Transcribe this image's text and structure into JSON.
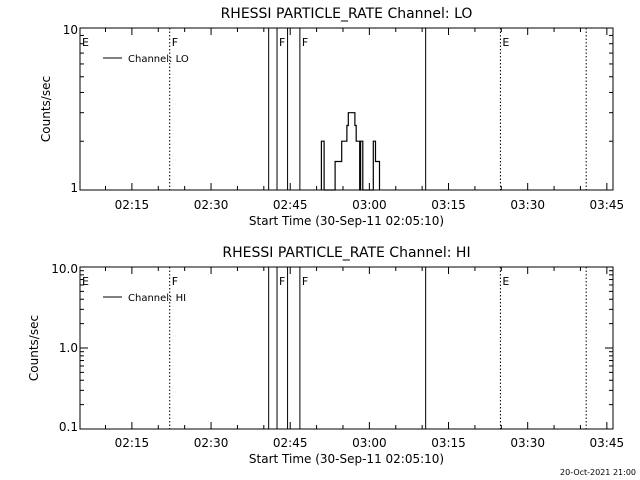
{
  "footer_timestamp": "20-Oct-2021 21:00",
  "chart_data": [
    {
      "type": "line",
      "title": "RHESSI PARTICLE_RATE Channel: LO",
      "xlabel": "Start Time (30-Sep-11 02:05:10)",
      "ylabel": "Counts/sec",
      "yscale": "log",
      "ylim": [
        1,
        10
      ],
      "xlim": [
        "02:05:10",
        "03:46:10"
      ],
      "x_tick_labels": [
        "02:15",
        "02:30",
        "02:45",
        "03:00",
        "03:15",
        "03:30",
        "03:45"
      ],
      "y_tick_labels": [
        "1",
        "10"
      ],
      "grid": false,
      "legend": {
        "entries": [
          "Channel: LO"
        ],
        "placement": "top-left"
      },
      "series": [
        {
          "name": "Channel: LO",
          "points": [
            [
              "02:50:55",
              1
            ],
            [
              "02:50:55",
              2
            ],
            [
              "02:51:25",
              2
            ],
            [
              "02:51:25",
              1
            ],
            [
              "02:53:30",
              1
            ],
            [
              "02:53:30",
              1.5
            ],
            [
              "02:54:45",
              1.5
            ],
            [
              "02:54:45",
              2
            ],
            [
              "02:55:45",
              2
            ],
            [
              "02:55:45",
              2.5
            ],
            [
              "02:56:00",
              2.5
            ],
            [
              "02:56:00",
              3
            ],
            [
              "02:57:15",
              3
            ],
            [
              "02:57:15",
              2.5
            ],
            [
              "02:57:30",
              2.5
            ],
            [
              "02:57:30",
              2
            ],
            [
              "02:58:10",
              2
            ],
            [
              "02:58:10",
              1
            ],
            [
              "02:58:20",
              1
            ],
            [
              "02:58:20",
              2
            ],
            [
              "02:58:45",
              2
            ],
            [
              "02:58:45",
              1
            ],
            [
              "03:00:45",
              1
            ],
            [
              "03:00:45",
              2
            ],
            [
              "03:01:10",
              2
            ],
            [
              "03:01:10",
              1.5
            ],
            [
              "03:01:55",
              1.5
            ],
            [
              "03:01:55",
              1
            ]
          ]
        }
      ],
      "markers": {
        "solid_lines": [
          "02:40:55",
          "02:42:30",
          "02:44:30",
          "02:46:50",
          "03:10:40"
        ],
        "dotted_lines": [
          "02:22:10",
          "03:24:50",
          "03:41:05"
        ],
        "letters": [
          {
            "label": "E",
            "at": "02:05:10"
          },
          {
            "label": "F",
            "at": "02:22:10"
          },
          {
            "label": "F",
            "at": "02:42:30"
          },
          {
            "label": "F",
            "at": "02:46:50"
          },
          {
            "label": "E",
            "at": "03:24:50"
          }
        ]
      }
    },
    {
      "type": "line",
      "title": "RHESSI PARTICLE_RATE Channel: HI",
      "xlabel": "Start Time (30-Sep-11 02:05:10)",
      "ylabel": "Counts/sec",
      "yscale": "log",
      "ylim": [
        0.1,
        10
      ],
      "xlim": [
        "02:05:10",
        "03:46:10"
      ],
      "x_tick_labels": [
        "02:15",
        "02:30",
        "02:45",
        "03:00",
        "03:15",
        "03:30",
        "03:45"
      ],
      "y_tick_labels": [
        "0.1",
        "1.0",
        "10.0"
      ],
      "grid": false,
      "legend": {
        "entries": [
          "Channel: HI"
        ],
        "placement": "top-left"
      },
      "series": [
        {
          "name": "Channel: HI",
          "points": []
        }
      ],
      "markers": {
        "solid_lines": [
          "02:40:55",
          "02:42:30",
          "02:44:30",
          "02:46:50",
          "03:10:40"
        ],
        "dotted_lines": [
          "02:22:10",
          "03:24:50",
          "03:41:05"
        ],
        "letters": [
          {
            "label": "E",
            "at": "02:05:10"
          },
          {
            "label": "F",
            "at": "02:22:10"
          },
          {
            "label": "F",
            "at": "02:42:30"
          },
          {
            "label": "F",
            "at": "02:46:50"
          },
          {
            "label": "E",
            "at": "03:24:50"
          }
        ]
      }
    }
  ]
}
